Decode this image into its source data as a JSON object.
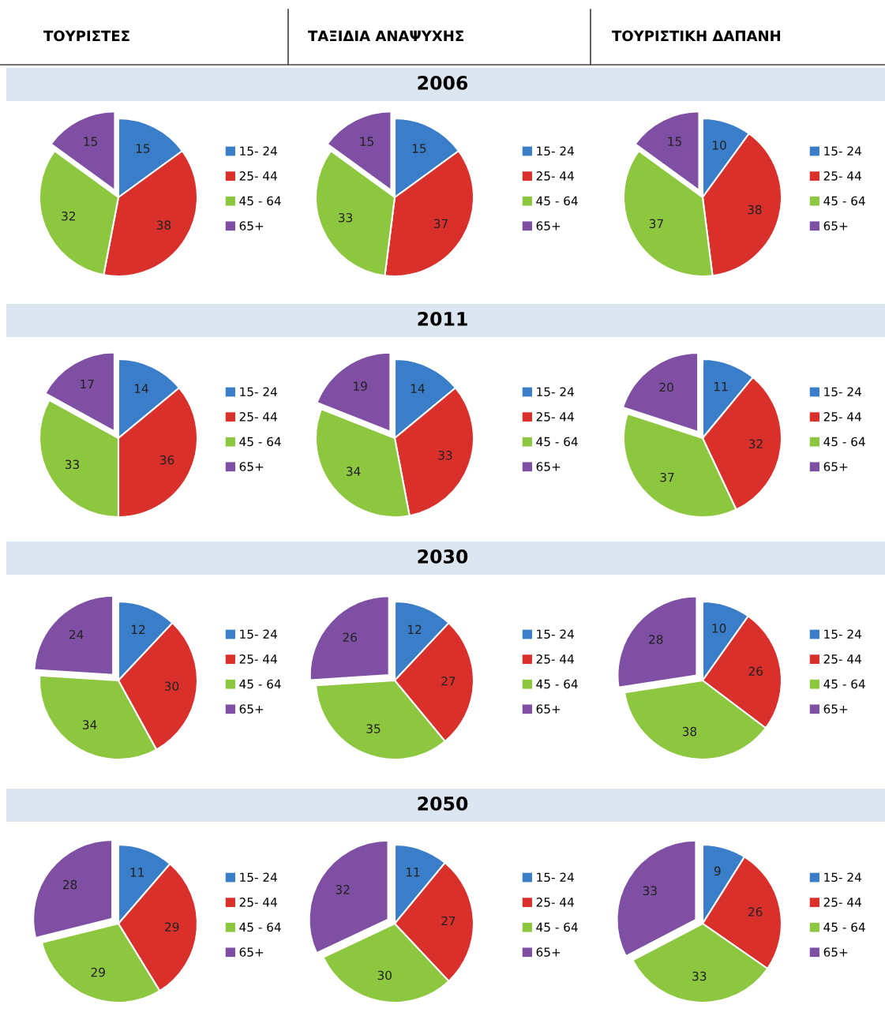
{
  "chart_data": [
    {
      "type": "pie",
      "title": "ΤΟΥΡΙΣΤΕΣ",
      "categories": [
        "15- 24",
        "25- 44",
        "45 - 64",
        "65+"
      ],
      "values": [
        15,
        38,
        32,
        15
      ],
      "colors": [
        "#3a7dc9",
        "#d9302c",
        "#8dc63f",
        "#7e4fa3"
      ],
      "data_labels": true,
      "legend": "right"
    },
    {
      "type": "pie",
      "title": "ΤΑΞΙΔΙΑ ΑΝΑΨΥΧΗΣ",
      "subtitle": "2006",
      "categories": [
        "15- 24",
        "25- 44",
        "45 - 64",
        "65+"
      ],
      "values": [
        15,
        37,
        33,
        15
      ],
      "colors": [
        "#3a7dc9",
        "#d9302c",
        "#8dc63f",
        "#7e4fa3"
      ],
      "data_labels": true,
      "legend": "right"
    },
    {
      "type": "pie",
      "title": "ΤΟΥΡΙΣΤΙΚΗ ΔΑΠΑΝΗ",
      "categories": [
        "15- 24",
        "25- 44",
        "45 - 64",
        "65+"
      ],
      "values": [
        10,
        38,
        37,
        15
      ],
      "colors": [
        "#3a7dc9",
        "#d9302c",
        "#8dc63f",
        "#7e4fa3"
      ],
      "data_labels": true,
      "legend": "right"
    },
    {
      "type": "pie",
      "categories": [
        "15- 24",
        "25- 44",
        "45 - 64",
        "65+"
      ],
      "values": [
        14,
        36,
        33,
        17
      ],
      "colors": [
        "#3a7dc9",
        "#d9302c",
        "#8dc63f",
        "#7e4fa3"
      ],
      "data_labels": true,
      "legend": "right"
    },
    {
      "type": "pie",
      "subtitle": "2011",
      "categories": [
        "15- 24",
        "25- 44",
        "45 - 64",
        "65+"
      ],
      "values": [
        14,
        33,
        34,
        19
      ],
      "colors": [
        "#3a7dc9",
        "#d9302c",
        "#8dc63f",
        "#7e4fa3"
      ],
      "data_labels": true,
      "legend": "right"
    },
    {
      "type": "pie",
      "categories": [
        "15- 24",
        "25- 44",
        "45 - 64",
        "65+"
      ],
      "values": [
        11,
        32,
        37,
        20
      ],
      "colors": [
        "#3a7dc9",
        "#d9302c",
        "#8dc63f",
        "#7e4fa3"
      ],
      "data_labels": true,
      "legend": "right"
    },
    {
      "type": "pie",
      "categories": [
        "15- 24",
        "25- 44",
        "45 - 64",
        "65+"
      ],
      "values": [
        12,
        30,
        34,
        24
      ],
      "colors": [
        "#3a7dc9",
        "#d9302c",
        "#8dc63f",
        "#7e4fa3"
      ],
      "data_labels": true,
      "legend": "right"
    },
    {
      "type": "pie",
      "subtitle": "2030",
      "categories": [
        "15- 24",
        "25- 44",
        "45 - 64",
        "65+"
      ],
      "values": [
        12,
        27,
        35,
        26
      ],
      "colors": [
        "#3a7dc9",
        "#d9302c",
        "#8dc63f",
        "#7e4fa3"
      ],
      "data_labels": true,
      "legend": "right"
    },
    {
      "type": "pie",
      "categories": [
        "15- 24",
        "25- 44",
        "45 - 64",
        "65+"
      ],
      "values": [
        10,
        26,
        38,
        28
      ],
      "colors": [
        "#3a7dc9",
        "#d9302c",
        "#8dc63f",
        "#7e4fa3"
      ],
      "data_labels": true,
      "legend": "right"
    },
    {
      "type": "pie",
      "categories": [
        "15- 24",
        "25- 44",
        "45 - 64",
        "65+"
      ],
      "values": [
        11,
        29,
        29,
        28
      ],
      "colors": [
        "#3a7dc9",
        "#d9302c",
        "#8dc63f",
        "#7e4fa3"
      ],
      "data_labels": true,
      "legend": "right"
    },
    {
      "type": "pie",
      "subtitle": "2050",
      "categories": [
        "15- 24",
        "25- 44",
        "45 - 64",
        "65+"
      ],
      "values": [
        11,
        27,
        30,
        32
      ],
      "colors": [
        "#3a7dc9",
        "#d9302c",
        "#8dc63f",
        "#7e4fa3"
      ],
      "data_labels": true,
      "legend": "right"
    },
    {
      "type": "pie",
      "categories": [
        "15- 24",
        "25- 44",
        "45 - 64",
        "65+"
      ],
      "values": [
        9,
        26,
        33,
        33
      ],
      "colors": [
        "#3a7dc9",
        "#d9302c",
        "#8dc63f",
        "#7e4fa3"
      ],
      "data_labels": true,
      "legend": "right"
    }
  ]
}
